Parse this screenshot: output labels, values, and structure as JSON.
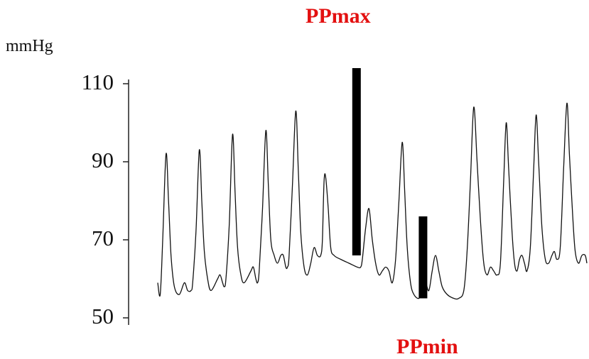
{
  "chart_data": {
    "type": "line",
    "title": "",
    "ylabel": "mmHg",
    "yticks": [
      110,
      90,
      70,
      50
    ],
    "ylim": [
      48,
      112
    ],
    "x_range": [
      0,
      30
    ],
    "series": [
      {
        "waveform": [
          [
            0.0,
            59
          ],
          [
            0.15,
            56
          ],
          [
            0.3,
            70
          ],
          [
            0.5,
            92
          ],
          [
            0.65,
            80
          ],
          [
            0.8,
            66
          ],
          [
            1.0,
            58
          ],
          [
            1.3,
            56
          ],
          [
            1.6,
            59
          ],
          [
            1.8,
            57
          ],
          [
            2.0,
            57
          ],
          [
            2.1,
            59
          ],
          [
            2.3,
            72
          ],
          [
            2.5,
            93
          ],
          [
            2.65,
            80
          ],
          [
            2.8,
            67
          ],
          [
            3.0,
            60
          ],
          [
            3.2,
            57
          ],
          [
            3.6,
            60
          ],
          [
            3.75,
            61
          ],
          [
            3.9,
            59
          ],
          [
            4.0,
            58
          ],
          [
            4.1,
            60
          ],
          [
            4.3,
            74
          ],
          [
            4.5,
            97
          ],
          [
            4.65,
            82
          ],
          [
            4.8,
            68
          ],
          [
            5.0,
            61
          ],
          [
            5.2,
            59
          ],
          [
            5.6,
            62
          ],
          [
            5.75,
            63
          ],
          [
            5.9,
            60
          ],
          [
            6.0,
            59
          ],
          [
            6.1,
            62
          ],
          [
            6.3,
            78
          ],
          [
            6.5,
            98
          ],
          [
            6.65,
            84
          ],
          [
            6.8,
            70
          ],
          [
            7.0,
            66
          ],
          [
            7.2,
            64
          ],
          [
            7.4,
            66
          ],
          [
            7.55,
            66
          ],
          [
            7.7,
            63
          ],
          [
            7.8,
            63
          ],
          [
            7.9,
            66
          ],
          [
            8.1,
            84
          ],
          [
            8.3,
            103
          ],
          [
            8.45,
            88
          ],
          [
            8.6,
            72
          ],
          [
            8.8,
            63
          ],
          [
            9.0,
            61
          ],
          [
            9.2,
            64
          ],
          [
            9.4,
            68
          ],
          [
            9.6,
            66
          ],
          [
            9.8,
            66
          ],
          [
            9.9,
            70
          ],
          [
            10.0,
            85
          ],
          [
            10.1,
            86
          ],
          [
            10.25,
            78
          ],
          [
            10.4,
            68
          ],
          [
            10.6,
            66
          ],
          [
            11.0,
            65
          ],
          [
            11.5,
            64
          ],
          [
            12.0,
            63
          ],
          [
            12.2,
            63
          ],
          [
            12.3,
            65
          ],
          [
            12.5,
            73
          ],
          [
            12.7,
            78
          ],
          [
            12.9,
            70
          ],
          [
            13.1,
            64
          ],
          [
            13.3,
            61
          ],
          [
            13.5,
            62
          ],
          [
            13.7,
            63
          ],
          [
            13.9,
            62
          ],
          [
            14.1,
            59
          ],
          [
            14.3,
            65
          ],
          [
            14.5,
            80
          ],
          [
            14.7,
            95
          ],
          [
            14.85,
            82
          ],
          [
            15.0,
            68
          ],
          [
            15.2,
            59
          ],
          [
            15.4,
            56
          ],
          [
            15.7,
            55
          ],
          [
            15.9,
            57
          ],
          [
            16.1,
            59
          ],
          [
            16.3,
            57
          ],
          [
            16.5,
            62
          ],
          [
            16.7,
            66
          ],
          [
            16.9,
            62
          ],
          [
            17.1,
            58
          ],
          [
            17.4,
            56
          ],
          [
            17.8,
            55
          ],
          [
            18.1,
            55
          ],
          [
            18.4,
            57
          ],
          [
            18.6,
            67
          ],
          [
            18.8,
            85
          ],
          [
            19.0,
            104
          ],
          [
            19.2,
            90
          ],
          [
            19.4,
            75
          ],
          [
            19.6,
            64
          ],
          [
            19.8,
            61
          ],
          [
            20.0,
            63
          ],
          [
            20.2,
            62
          ],
          [
            20.4,
            61
          ],
          [
            20.6,
            64
          ],
          [
            20.8,
            85
          ],
          [
            20.95,
            100
          ],
          [
            21.1,
            88
          ],
          [
            21.3,
            72
          ],
          [
            21.45,
            64
          ],
          [
            21.6,
            62
          ],
          [
            21.75,
            65
          ],
          [
            21.9,
            66
          ],
          [
            22.05,
            64
          ],
          [
            22.2,
            62
          ],
          [
            22.4,
            68
          ],
          [
            22.6,
            88
          ],
          [
            22.75,
            102
          ],
          [
            22.9,
            90
          ],
          [
            23.1,
            73
          ],
          [
            23.3,
            65
          ],
          [
            23.5,
            64
          ],
          [
            23.7,
            66
          ],
          [
            23.85,
            67
          ],
          [
            24.0,
            65
          ],
          [
            24.2,
            68
          ],
          [
            24.4,
            88
          ],
          [
            24.6,
            105
          ],
          [
            24.75,
            92
          ],
          [
            24.95,
            76
          ],
          [
            25.1,
            67
          ],
          [
            25.3,
            64
          ],
          [
            25.5,
            66
          ],
          [
            25.7,
            66
          ],
          [
            25.8,
            64
          ]
        ]
      }
    ],
    "annotations": [
      {
        "label": "PPmax",
        "x": 11.95,
        "y_from": 66,
        "y_to": 114
      },
      {
        "label": "PPmin",
        "x": 15.95,
        "y_from": 55,
        "y_to": 76
      }
    ]
  }
}
